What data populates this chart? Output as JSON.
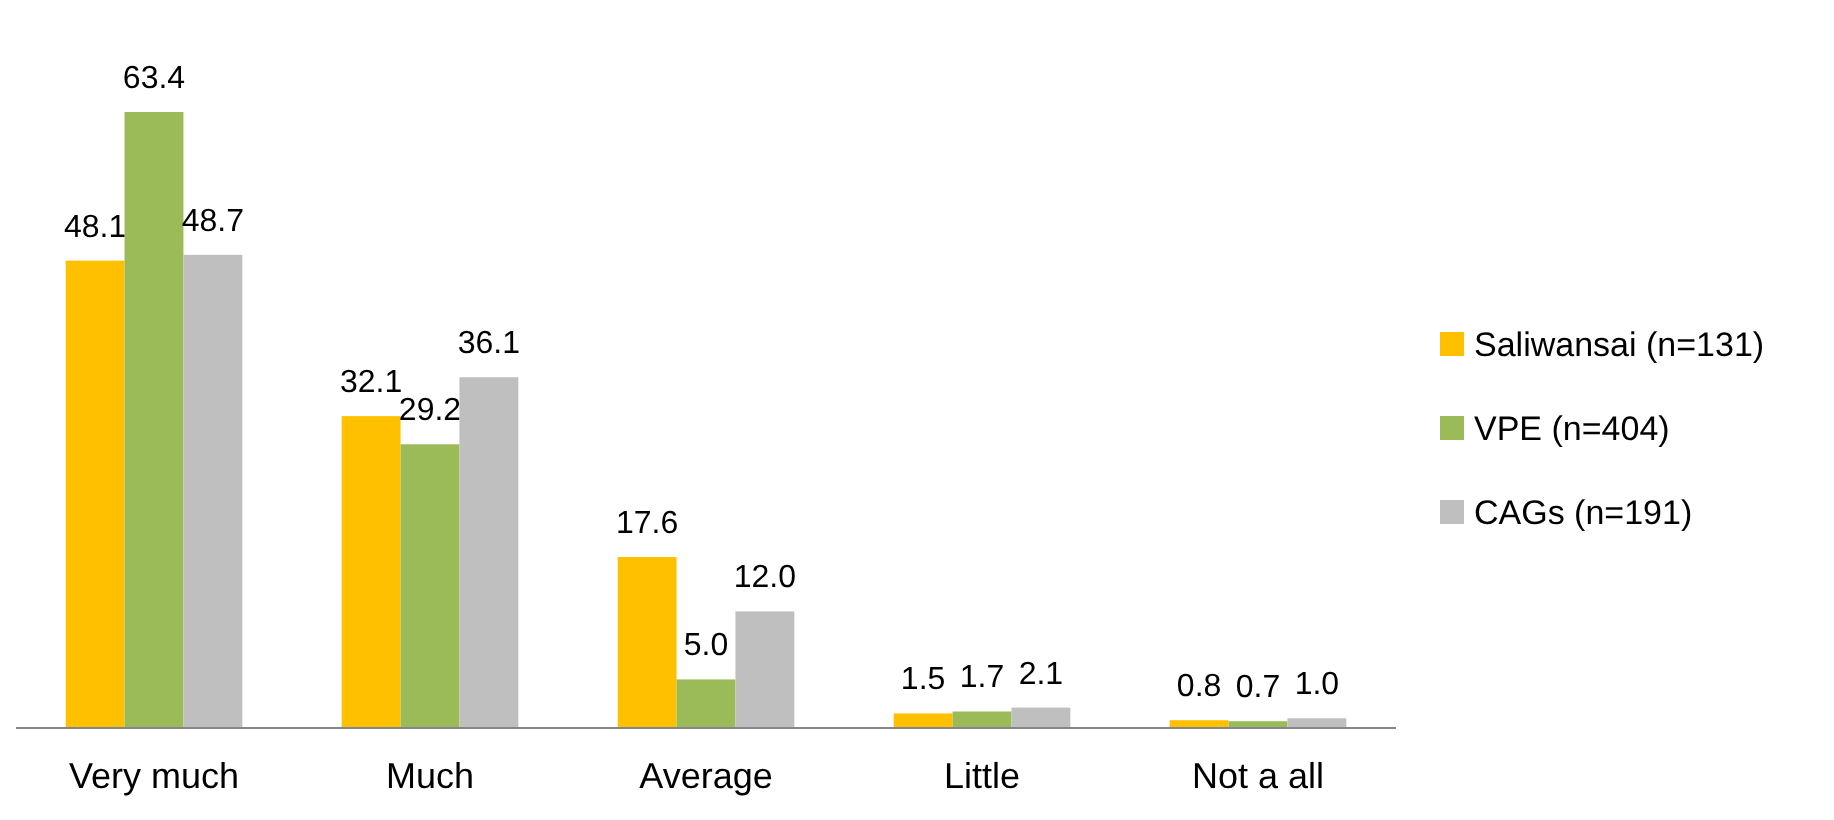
{
  "chart_data": {
    "type": "bar",
    "relative": false,
    "categories": [
      "Very much",
      "Much",
      "Average",
      "Little",
      "Not a all"
    ],
    "series": [
      {
        "name": "Saliwansai (n=131)",
        "color": "#ffc000",
        "values": [
          48.1,
          32.1,
          17.6,
          1.5,
          0.8
        ],
        "value_labels": [
          "48.1",
          "32.1",
          "17.6",
          "1.5",
          "0.8"
        ]
      },
      {
        "name": "VPE (n=404)",
        "color": "#9bbb59",
        "values": [
          63.4,
          29.2,
          5.0,
          1.7,
          0.7
        ],
        "value_labels": [
          "63.4",
          "29.2",
          "5.0",
          "1.7",
          "0.7"
        ]
      },
      {
        "name": "CAGs (n=191)",
        "color": "#bfbfbf",
        "values": [
          48.7,
          36.1,
          12.0,
          2.1,
          1.0
        ],
        "value_labels": [
          "48.7",
          "36.1",
          "12.0",
          "2.1",
          "1.0"
        ]
      }
    ],
    "legend": "right"
  }
}
